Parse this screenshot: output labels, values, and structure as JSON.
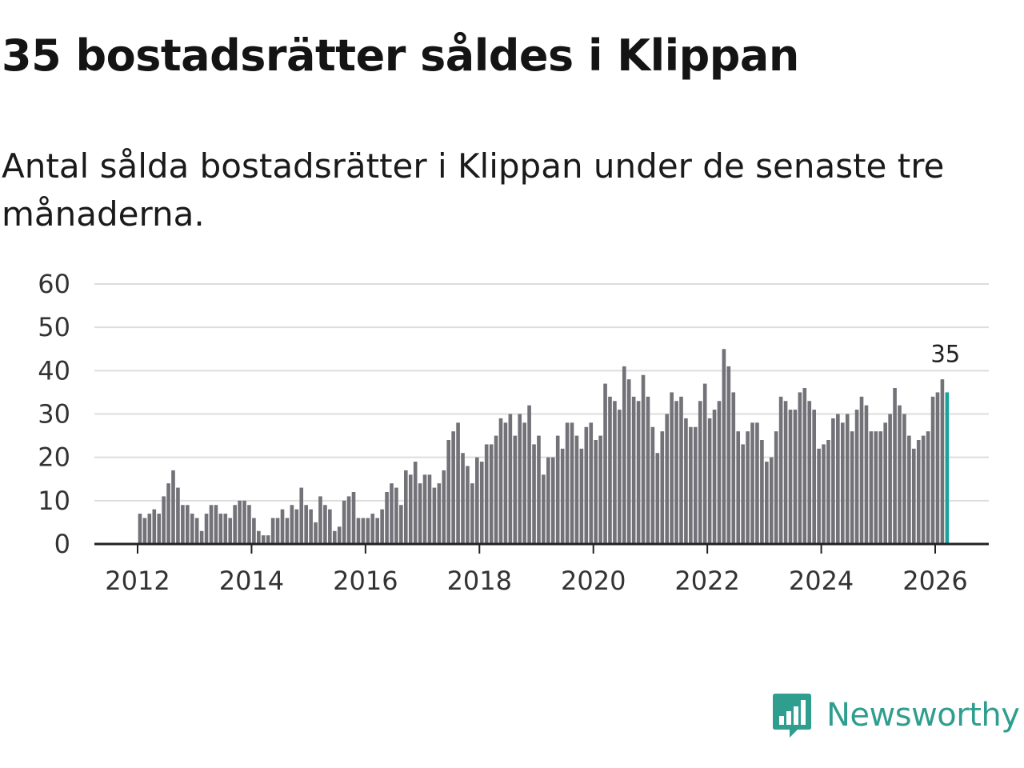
{
  "header": {
    "title": "35 bostadsrätter såldes i Klippan",
    "subtitle": "Antal sålda bostadsrätter i Klippan under de senaste tre månaderna."
  },
  "brand": {
    "name": "Newsworthy",
    "color": "#2f9e8f"
  },
  "colors": {
    "bar": "#737278",
    "highlight": "#1aa39a",
    "grid": "#dddddd"
  },
  "chart_data": {
    "type": "bar",
    "title": "Antal sålda bostadsrätter i Klippan",
    "xlabel": "",
    "ylabel": "",
    "ylim": [
      0,
      60
    ],
    "yticks": [
      0,
      10,
      20,
      30,
      40,
      50,
      60
    ],
    "xticks": [
      "2012",
      "2014",
      "2016",
      "2018",
      "2020",
      "2022",
      "2024",
      "2026"
    ],
    "x_start": "2012-01",
    "x_end": "2026-03",
    "grid": true,
    "highlight_last": true,
    "last_value_label": "35",
    "values": [
      7,
      6,
      7,
      8,
      7,
      11,
      14,
      17,
      13,
      9,
      9,
      7,
      6,
      3,
      7,
      9,
      9,
      7,
      7,
      6,
      9,
      10,
      10,
      9,
      6,
      3,
      2,
      2,
      6,
      6,
      8,
      6,
      9,
      8,
      13,
      9,
      8,
      5,
      11,
      9,
      8,
      3,
      4,
      10,
      11,
      12,
      6,
      6,
      6,
      7,
      6,
      8,
      12,
      14,
      13,
      9,
      17,
      16,
      19,
      14,
      16,
      16,
      13,
      14,
      17,
      24,
      26,
      28,
      21,
      18,
      14,
      20,
      19,
      23,
      23,
      25,
      29,
      28,
      30,
      25,
      30,
      28,
      32,
      23,
      25,
      16,
      20,
      20,
      25,
      22,
      28,
      28,
      25,
      22,
      27,
      28,
      24,
      25,
      37,
      34,
      33,
      31,
      41,
      38,
      34,
      33,
      39,
      34,
      27,
      21,
      26,
      30,
      35,
      33,
      34,
      29,
      27,
      27,
      33,
      37,
      29,
      31,
      33,
      45,
      41,
      35,
      26,
      23,
      26,
      28,
      28,
      24,
      19,
      20,
      26,
      34,
      33,
      31,
      31,
      35,
      36,
      33,
      31,
      22,
      23,
      24,
      29,
      30,
      28,
      30,
      26,
      31,
      34,
      32,
      26,
      26,
      26,
      28,
      30,
      36,
      32,
      30,
      25,
      22,
      24,
      25,
      26,
      34,
      35,
      38,
      35
    ]
  }
}
